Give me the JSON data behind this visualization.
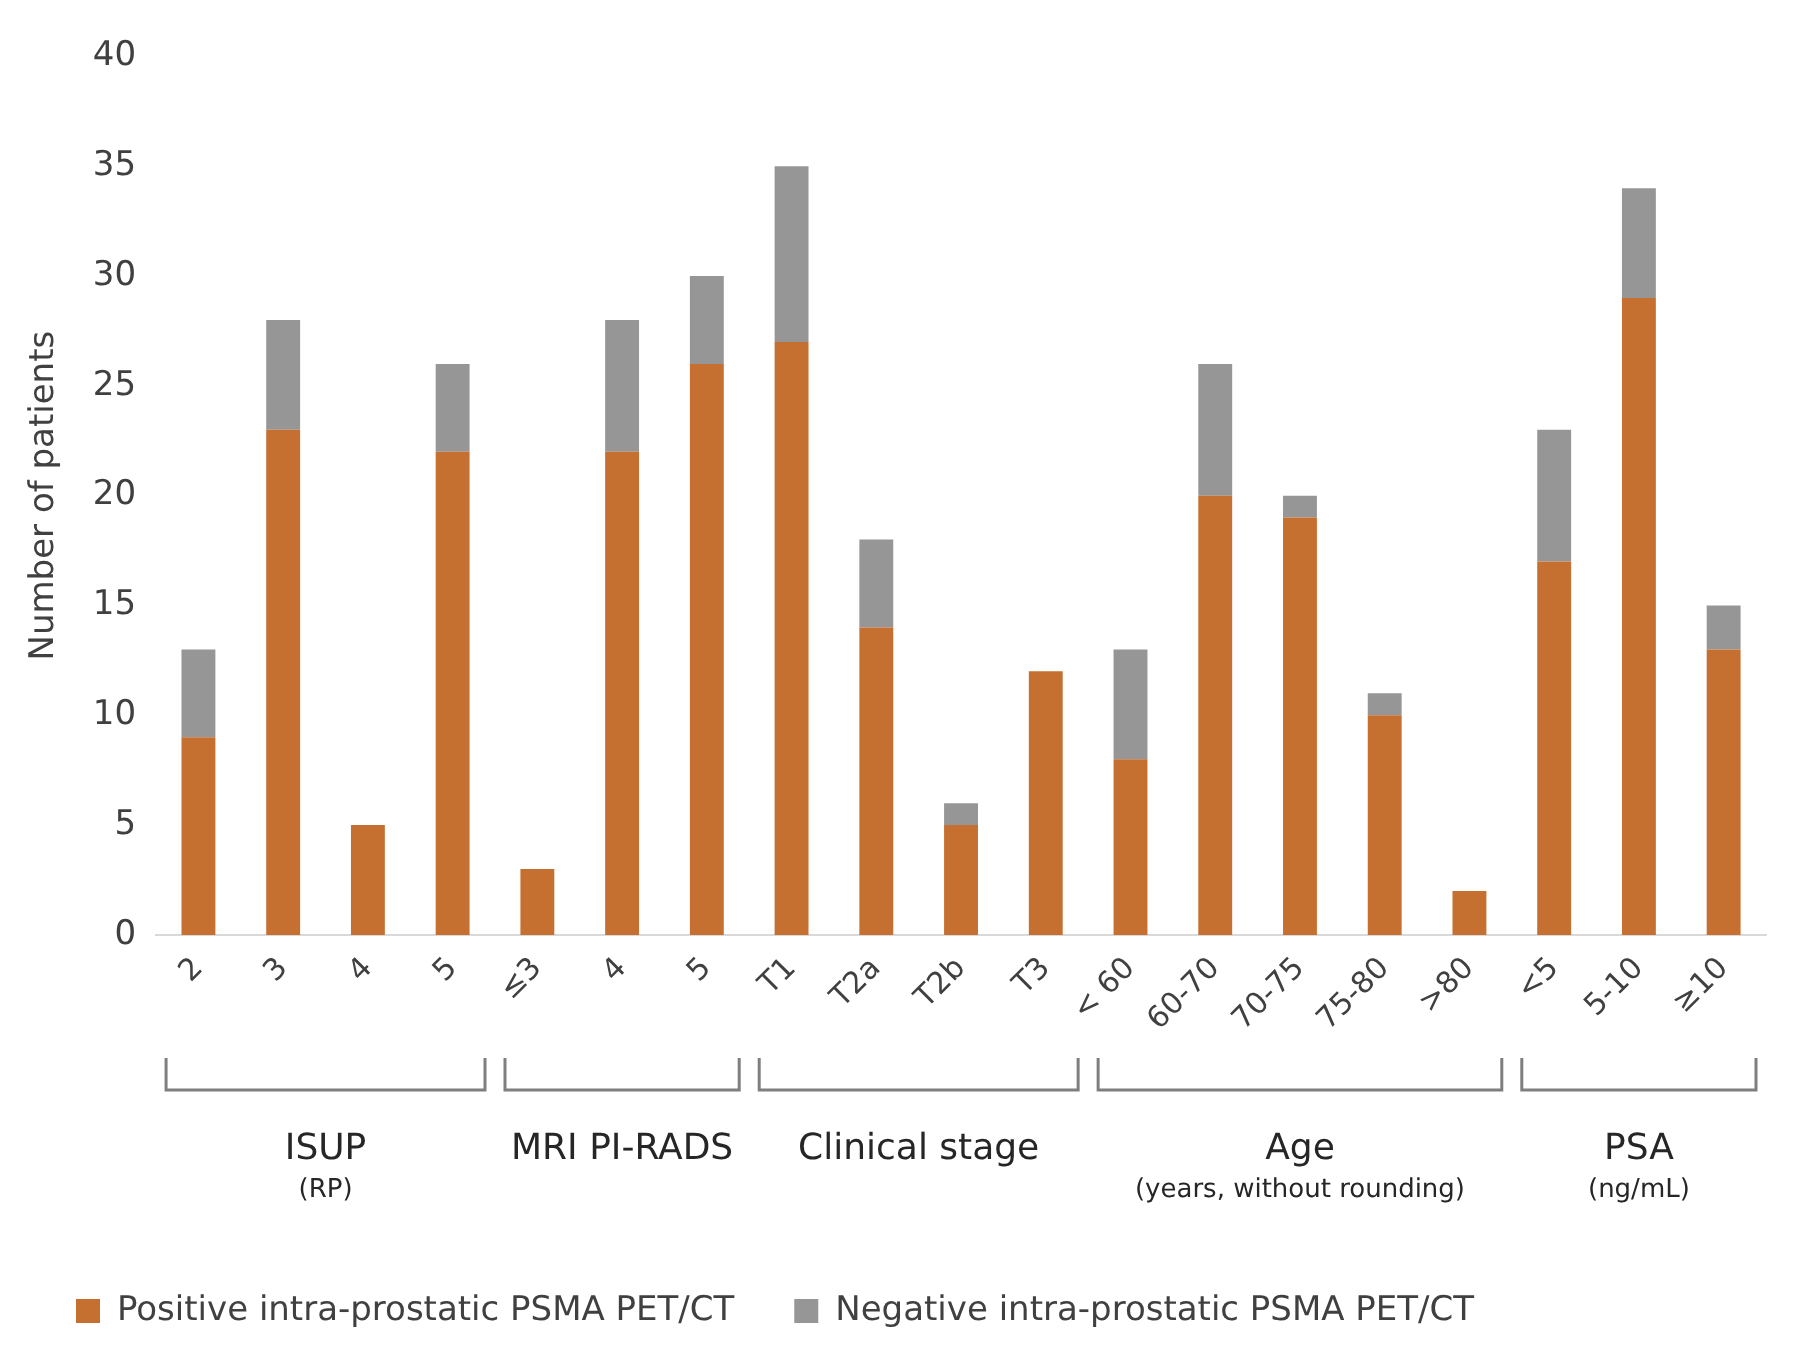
{
  "chart_data": {
    "type": "bar",
    "stacked": true,
    "ylabel": "Number of patients",
    "categories": [
      "2",
      "3",
      "4",
      "5",
      "≤3",
      "4",
      "5",
      "T1",
      "T2a",
      "T2b",
      "T3",
      "< 60",
      "60-70",
      "70-75",
      "75-80",
      ">80",
      "<5",
      "5-10",
      "≥10"
    ],
    "series": [
      {
        "name": "Positive intra-prostatic PSMA PET/CT",
        "color": "#c56f30",
        "values": [
          9,
          23,
          5,
          22,
          3,
          22,
          26,
          27,
          14,
          5,
          12,
          8,
          20,
          19,
          10,
          2,
          17,
          29,
          13
        ]
      },
      {
        "name": "Negative intra-prostatic PSMA PET/CT",
        "color": "#969696",
        "values": [
          4,
          5,
          0,
          4,
          0,
          6,
          4,
          8,
          4,
          1,
          0,
          5,
          6,
          1,
          1,
          0,
          6,
          5,
          2
        ]
      }
    ],
    "ylim": [
      0,
      40
    ],
    "yticks": [
      0,
      5,
      10,
      15,
      20,
      25,
      30,
      35,
      40
    ],
    "grid": false,
    "legend": "bottom",
    "annotations": [
      "ISUP\n(RP)",
      "MRI PI-RADS",
      "Clinical stage",
      "Age\n(years, without rounding)",
      "PSA\n(ng/mL)"
    ]
  }
}
